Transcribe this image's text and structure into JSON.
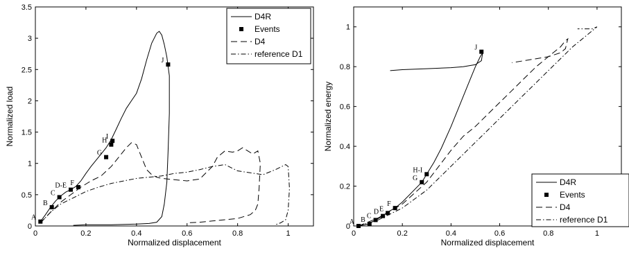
{
  "chart_data": [
    {
      "type": "line",
      "xlabel": "Normalized displacement",
      "ylabel": "Normalized load",
      "xlim": [
        0,
        1.1
      ],
      "ylim": [
        0,
        3.5
      ],
      "xticks": [
        0,
        0.2,
        0.4,
        0.6,
        0.8,
        1
      ],
      "yticks": [
        0,
        0.5,
        1,
        1.5,
        2,
        2.5,
        3,
        3.5
      ],
      "xtick_labels": [
        "0",
        "0.2",
        "0.4",
        "0.6",
        "0.8",
        "1"
      ],
      "ytick_labels": [
        "0",
        "0.5",
        "1",
        "1.5",
        "2",
        "2.5",
        "3",
        "3.5"
      ],
      "legend_position": "top-right",
      "legend": [
        "D4R",
        "Events",
        "D4",
        "reference D1"
      ],
      "series": [
        {
          "name": "D4R",
          "style": "solid",
          "x": [
            0.02,
            0.04,
            0.06,
            0.08,
            0.1,
            0.12,
            0.14,
            0.16,
            0.18,
            0.2,
            0.22,
            0.24,
            0.26,
            0.28,
            0.3,
            0.32,
            0.34,
            0.36,
            0.38,
            0.4,
            0.42,
            0.44,
            0.46,
            0.48,
            0.49,
            0.5,
            0.51,
            0.52,
            0.53,
            0.53,
            0.525,
            0.52,
            0.51,
            0.5,
            0.48,
            0.45,
            0.4,
            0.3,
            0.2,
            0.15
          ],
          "y": [
            0.07,
            0.18,
            0.3,
            0.4,
            0.48,
            0.54,
            0.58,
            0.63,
            0.72,
            0.84,
            0.95,
            1.05,
            1.15,
            1.25,
            1.38,
            1.55,
            1.72,
            1.88,
            2.0,
            2.12,
            2.35,
            2.65,
            2.92,
            3.08,
            3.11,
            3.05,
            2.9,
            2.7,
            2.4,
            1.8,
            1.2,
            0.7,
            0.35,
            0.15,
            0.06,
            0.04,
            0.03,
            0.02,
            0.02,
            0.01
          ]
        },
        {
          "name": "D4",
          "style": "dashed",
          "x": [
            0.02,
            0.06,
            0.1,
            0.14,
            0.18,
            0.22,
            0.26,
            0.3,
            0.33,
            0.36,
            0.38,
            0.4,
            0.42,
            0.44,
            0.46,
            0.48,
            0.5,
            0.55,
            0.6,
            0.65,
            0.7,
            0.72,
            0.75,
            0.78,
            0.8,
            0.82,
            0.84,
            0.86,
            0.88,
            0.89,
            0.885,
            0.88,
            0.87,
            0.85,
            0.8,
            0.75,
            0.7,
            0.65,
            0.6
          ],
          "y": [
            0.05,
            0.22,
            0.38,
            0.5,
            0.62,
            0.72,
            0.8,
            0.95,
            1.1,
            1.25,
            1.33,
            1.3,
            1.1,
            0.9,
            0.82,
            0.78,
            0.76,
            0.74,
            0.72,
            0.75,
            0.95,
            1.1,
            1.2,
            1.18,
            1.2,
            1.25,
            1.2,
            1.15,
            1.2,
            1.0,
            0.6,
            0.35,
            0.25,
            0.18,
            0.12,
            0.1,
            0.08,
            0.06,
            0.05
          ]
        },
        {
          "name": "reference D1",
          "style": "dashdot",
          "x": [
            0.02,
            0.06,
            0.1,
            0.15,
            0.2,
            0.25,
            0.3,
            0.35,
            0.4,
            0.45,
            0.5,
            0.55,
            0.6,
            0.65,
            0.7,
            0.75,
            0.8,
            0.85,
            0.9,
            0.95,
            0.99,
            1.0,
            1.005,
            1.0,
            0.99,
            0.97,
            0.95
          ],
          "y": [
            0.05,
            0.22,
            0.35,
            0.45,
            0.55,
            0.62,
            0.68,
            0.72,
            0.76,
            0.78,
            0.8,
            0.84,
            0.86,
            0.9,
            0.95,
            0.98,
            0.88,
            0.85,
            0.82,
            0.9,
            0.98,
            0.95,
            0.6,
            0.25,
            0.1,
            0.05,
            0.02
          ]
        }
      ],
      "events": [
        {
          "label": "A",
          "x": 0.02,
          "y": 0.07
        },
        {
          "label": "B",
          "x": 0.065,
          "y": 0.3
        },
        {
          "label": "C",
          "x": 0.095,
          "y": 0.46
        },
        {
          "label": "D-E",
          "x": 0.14,
          "y": 0.58
        },
        {
          "label": "F",
          "x": 0.17,
          "y": 0.62
        },
        {
          "label": "G",
          "x": 0.28,
          "y": 1.1
        },
        {
          "label": "H",
          "x": 0.3,
          "y": 1.3
        },
        {
          "label": "I",
          "x": 0.305,
          "y": 1.36
        },
        {
          "label": "J",
          "x": 0.525,
          "y": 2.58
        }
      ]
    },
    {
      "type": "line",
      "xlabel": "Normalized displacement",
      "ylabel": "Normalized energy",
      "xlim": [
        0,
        1.1
      ],
      "ylim": [
        0,
        1.1
      ],
      "xticks": [
        0,
        0.2,
        0.4,
        0.6,
        0.8,
        1
      ],
      "yticks": [
        0,
        0.2,
        0.4,
        0.6,
        0.8,
        1
      ],
      "xtick_labels": [
        "0",
        "0.2",
        "0.4",
        "0.6",
        "0.8",
        "1"
      ],
      "ytick_labels": [
        "0",
        "0.2",
        "0.4",
        "0.6",
        "0.8",
        "1"
      ],
      "legend_position": "bottom-right",
      "legend": [
        "D4R",
        "Events",
        "D4",
        "reference D1"
      ],
      "series": [
        {
          "name": "D4R",
          "style": "solid",
          "x": [
            0.02,
            0.06,
            0.09,
            0.12,
            0.14,
            0.17,
            0.2,
            0.24,
            0.28,
            0.3,
            0.33,
            0.36,
            0.4,
            0.44,
            0.48,
            0.5,
            0.52,
            0.53,
            0.525,
            0.5,
            0.45,
            0.4,
            0.3,
            0.2,
            0.15
          ],
          "y": [
            0.0,
            0.01,
            0.03,
            0.05,
            0.07,
            0.09,
            0.12,
            0.17,
            0.22,
            0.26,
            0.32,
            0.39,
            0.5,
            0.62,
            0.74,
            0.8,
            0.85,
            0.87,
            0.83,
            0.81,
            0.8,
            0.795,
            0.79,
            0.785,
            0.78
          ]
        },
        {
          "name": "D4",
          "style": "dashed",
          "x": [
            0.02,
            0.1,
            0.2,
            0.3,
            0.4,
            0.45,
            0.5,
            0.55,
            0.6,
            0.65,
            0.7,
            0.75,
            0.8,
            0.85,
            0.87,
            0.88,
            0.87,
            0.85,
            0.8,
            0.75,
            0.7,
            0.65
          ],
          "y": [
            0.0,
            0.04,
            0.11,
            0.22,
            0.38,
            0.45,
            0.5,
            0.56,
            0.62,
            0.68,
            0.74,
            0.8,
            0.85,
            0.9,
            0.93,
            0.94,
            0.89,
            0.87,
            0.85,
            0.84,
            0.83,
            0.82
          ]
        },
        {
          "name": "reference D1",
          "style": "dashdot",
          "x": [
            0.02,
            0.1,
            0.2,
            0.3,
            0.4,
            0.5,
            0.6,
            0.7,
            0.8,
            0.9,
            0.95,
            1.0,
            0.98,
            0.96,
            0.94,
            0.92
          ],
          "y": [
            0.0,
            0.03,
            0.09,
            0.18,
            0.3,
            0.42,
            0.54,
            0.66,
            0.78,
            0.9,
            0.95,
            1.0,
            0.99,
            0.99,
            0.99,
            0.99
          ]
        }
      ],
      "events": [
        {
          "label": "A",
          "x": 0.02,
          "y": 0.0
        },
        {
          "label": "B",
          "x": 0.065,
          "y": 0.01
        },
        {
          "label": "C",
          "x": 0.09,
          "y": 0.03
        },
        {
          "label": "D",
          "x": 0.12,
          "y": 0.05
        },
        {
          "label": "E",
          "x": 0.14,
          "y": 0.065
        },
        {
          "label": "F",
          "x": 0.17,
          "y": 0.09
        },
        {
          "label": "G",
          "x": 0.28,
          "y": 0.22
        },
        {
          "label": "H-I",
          "x": 0.3,
          "y": 0.26
        },
        {
          "label": "J",
          "x": 0.525,
          "y": 0.875
        }
      ]
    }
  ]
}
